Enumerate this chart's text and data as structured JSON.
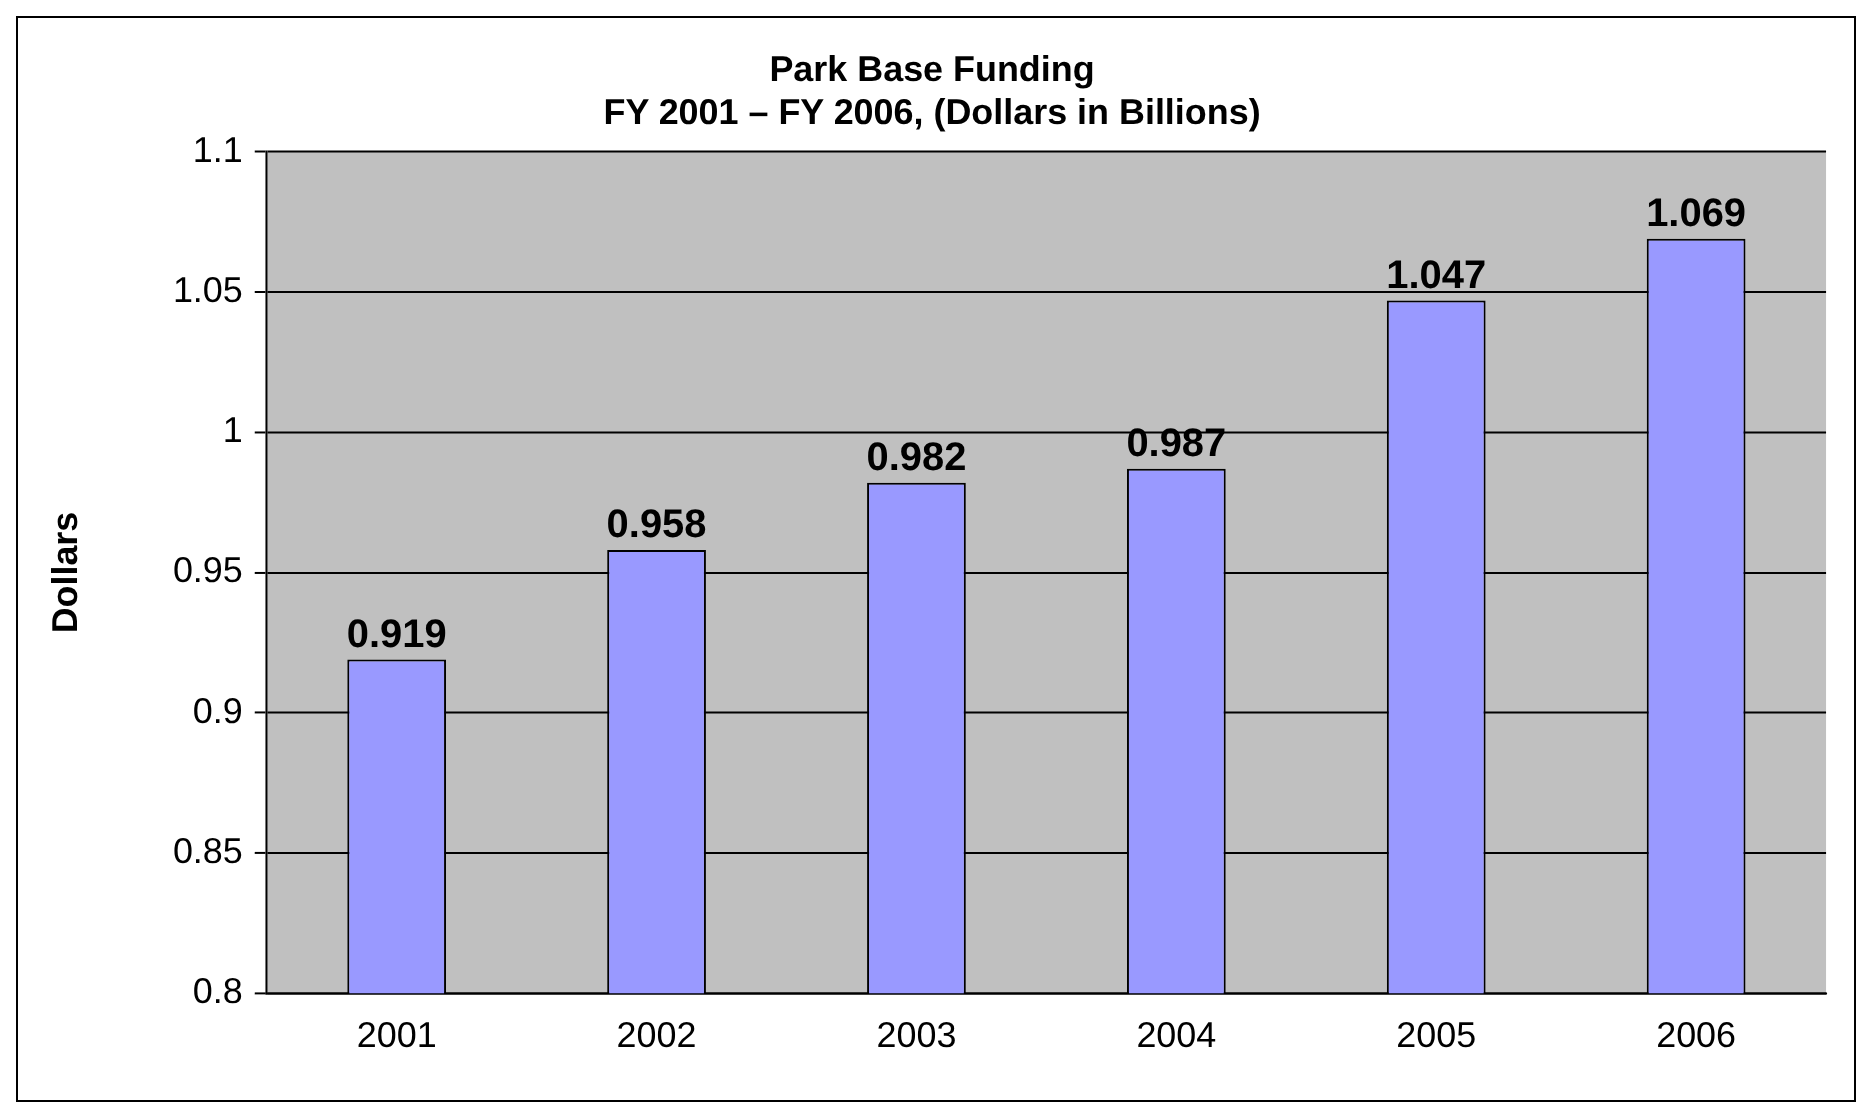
{
  "chart_data": {
    "type": "bar",
    "title": "Park Base Funding\nFY 2001 – FY 2006, (Dollars in Billions)",
    "ylabel": "Dollars",
    "categories": [
      "2001",
      "2002",
      "2003",
      "2004",
      "2005",
      "2006"
    ],
    "values": [
      0.919,
      0.958,
      0.982,
      0.987,
      1.047,
      1.069
    ],
    "color": "#9999ff",
    "ylim": [
      0.8,
      1.1
    ],
    "yticks": [
      0.8,
      0.85,
      0.9,
      0.95,
      1,
      1.05,
      1.1
    ],
    "grid": "y",
    "legend": false,
    "data_labels": true
  }
}
